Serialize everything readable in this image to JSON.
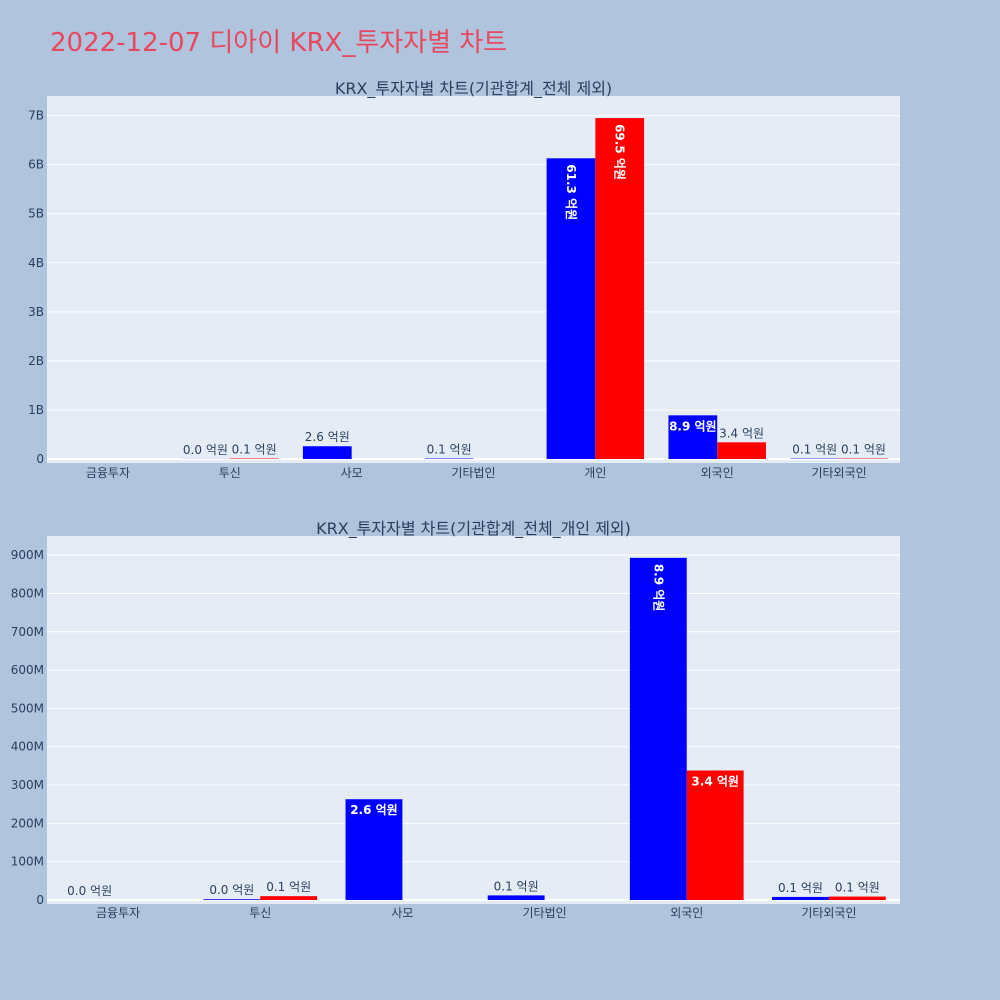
{
  "page": {
    "title": "2022-12-07 디아이 KRX_투자자별 차트",
    "background": "#b0c4de",
    "title_color": "#e8485f",
    "plot_bg": "#e5ecf6",
    "series_colors": [
      "#0000ff",
      "#ff0000"
    ]
  },
  "chart_data": [
    {
      "type": "bar",
      "title": "KRX_투자자별 차트(기관합계_전체 제외)",
      "categories": [
        "금융투자",
        "투신",
        "사모",
        "기타법인",
        "개인",
        "외국인",
        "기타외국인"
      ],
      "series": [
        {
          "color": "#0000ff",
          "values": [
            0,
            2000000,
            260000000,
            10000000,
            6130000000,
            890000000,
            8000000
          ]
        },
        {
          "color": "#ff0000",
          "values": [
            0,
            10000000,
            0,
            0,
            6950000000,
            340000000,
            9000000
          ]
        }
      ],
      "labels": [
        [
          "",
          "0.0 억원",
          "2.6 억원",
          "0.1 억원",
          "61.3 억원",
          "8.9 억원",
          "0.1 억원"
        ],
        [
          "",
          "0.1 억원",
          "",
          "",
          "69.5 억원",
          "3.4 억원",
          "0.1 억원"
        ]
      ],
      "ylim": [
        0,
        7400000000
      ],
      "yticks": [
        0,
        1000000000,
        2000000000,
        3000000000,
        4000000000,
        5000000000,
        6000000000,
        7000000000
      ],
      "yticklabels": [
        "0",
        "1B",
        "2B",
        "3B",
        "4B",
        "5B",
        "6B",
        "7B"
      ],
      "grid": true,
      "xlabel": "",
      "ylabel": ""
    },
    {
      "type": "bar",
      "title": "KRX_투자자별 차트(기관합계_전체_개인 제외)",
      "categories": [
        "금융투자",
        "투신",
        "사모",
        "기타법인",
        "외국인",
        "기타외국인"
      ],
      "series": [
        {
          "color": "#0000ff",
          "values": [
            0,
            2000000,
            263000000,
            12000000,
            893000000,
            8000000
          ]
        },
        {
          "color": "#ff0000",
          "values": [
            0,
            10000000,
            0,
            0,
            338000000,
            9000000
          ]
        }
      ],
      "labels": [
        [
          "0.0 억원",
          "0.0 억원",
          "2.6 억원",
          "0.1 억원",
          "8.9 억원",
          "0.1 억원"
        ],
        [
          "",
          "0.1 억원",
          "",
          "",
          "3.4 억원",
          "0.1 억원"
        ]
      ],
      "ylim": [
        0,
        950000000
      ],
      "yticks": [
        0,
        100000000,
        200000000,
        300000000,
        400000000,
        500000000,
        600000000,
        700000000,
        800000000,
        900000000
      ],
      "yticklabels": [
        "0",
        "100M",
        "200M",
        "300M",
        "400M",
        "500M",
        "600M",
        "700M",
        "800M",
        "900M"
      ],
      "grid": true,
      "xlabel": "",
      "ylabel": ""
    }
  ]
}
